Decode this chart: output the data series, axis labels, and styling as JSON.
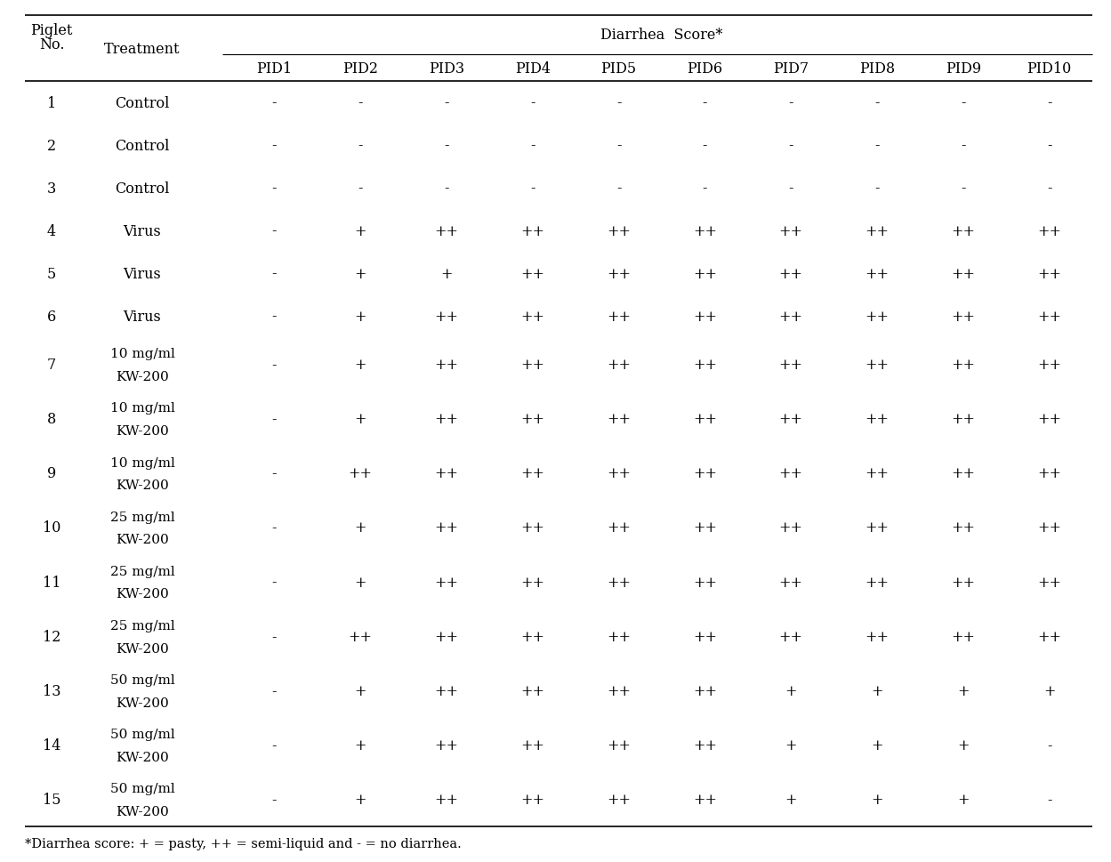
{
  "title": "Diarrhea  Score*",
  "col_headers": [
    "PID1",
    "PID2",
    "PID3",
    "PID4",
    "PID5",
    "PID6",
    "PID7",
    "PID8",
    "PID9",
    "PID10"
  ],
  "rows": [
    {
      "piglet": "1",
      "t1": "Control",
      "t2": "",
      "scores": [
        "-",
        "-",
        "-",
        "-",
        "-",
        "-",
        "-",
        "-",
        "-",
        "-"
      ]
    },
    {
      "piglet": "2",
      "t1": "Control",
      "t2": "",
      "scores": [
        "-",
        "-",
        "-",
        "-",
        "-",
        "-",
        "-",
        "-",
        "-",
        "-"
      ]
    },
    {
      "piglet": "3",
      "t1": "Control",
      "t2": "",
      "scores": [
        "-",
        "-",
        "-",
        "-",
        "-",
        "-",
        "-",
        "-",
        "-",
        "-"
      ]
    },
    {
      "piglet": "4",
      "t1": "Virus",
      "t2": "",
      "scores": [
        "-",
        "+",
        "++",
        "++",
        "++",
        "++",
        "++",
        "++",
        "++",
        "++"
      ]
    },
    {
      "piglet": "5",
      "t1": "Virus",
      "t2": "",
      "scores": [
        "-",
        "+",
        "+",
        "++",
        "++",
        "++",
        "++",
        "++",
        "++",
        "++"
      ]
    },
    {
      "piglet": "6",
      "t1": "Virus",
      "t2": "",
      "scores": [
        "-",
        "+",
        "++",
        "++",
        "++",
        "++",
        "++",
        "++",
        "++",
        "++"
      ]
    },
    {
      "piglet": "7",
      "t1": "10 mg/ml",
      "t2": "KW-200",
      "scores": [
        "-",
        "+",
        "++",
        "++",
        "++",
        "++",
        "++",
        "++",
        "++",
        "++"
      ]
    },
    {
      "piglet": "8",
      "t1": "10 mg/ml",
      "t2": "KW-200",
      "scores": [
        "-",
        "+",
        "++",
        "++",
        "++",
        "++",
        "++",
        "++",
        "++",
        "++"
      ]
    },
    {
      "piglet": "9",
      "t1": "10 mg/ml",
      "t2": "KW-200",
      "scores": [
        "-",
        "++",
        "++",
        "++",
        "++",
        "++",
        "++",
        "++",
        "++",
        "++"
      ]
    },
    {
      "piglet": "10",
      "t1": "25 mg/ml",
      "t2": "KW-200",
      "scores": [
        "-",
        "+",
        "++",
        "++",
        "++",
        "++",
        "++",
        "++",
        "++",
        "++"
      ]
    },
    {
      "piglet": "11",
      "t1": "25 mg/ml",
      "t2": "KW-200",
      "scores": [
        "-",
        "+",
        "++",
        "++",
        "++",
        "++",
        "++",
        "++",
        "++",
        "++"
      ]
    },
    {
      "piglet": "12",
      "t1": "25 mg/ml",
      "t2": "KW-200",
      "scores": [
        "-",
        "++",
        "++",
        "++",
        "++",
        "++",
        "++",
        "++",
        "++",
        "++"
      ]
    },
    {
      "piglet": "13",
      "t1": "50 mg/ml",
      "t2": "KW-200",
      "scores": [
        "-",
        "+",
        "++",
        "++",
        "++",
        "++",
        "+",
        "+",
        "+",
        "+"
      ]
    },
    {
      "piglet": "14",
      "t1": "50 mg/ml",
      "t2": "KW-200",
      "scores": [
        "-",
        "+",
        "++",
        "++",
        "++",
        "++",
        "+",
        "+",
        "+",
        "-"
      ]
    },
    {
      "piglet": "15",
      "t1": "50 mg/ml",
      "t2": "KW-200",
      "scores": [
        "-",
        "+",
        "++",
        "++",
        "++",
        "++",
        "+",
        "+",
        "+",
        "-"
      ]
    }
  ],
  "footnote": "*Diarrhea score: + = pasty, ++ = semi-liquid and - = no diarrhea.",
  "bg": "#ffffff",
  "fg": "#000000",
  "fs": 11.5
}
